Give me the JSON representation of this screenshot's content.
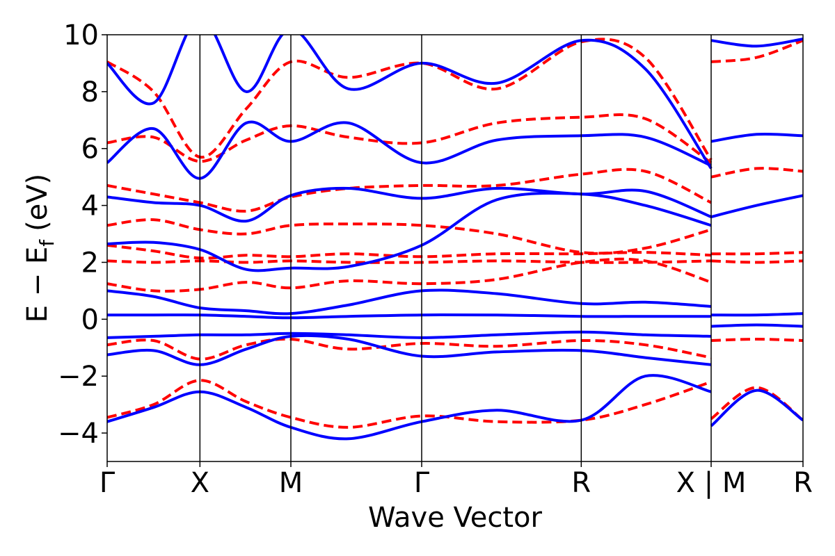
{
  "chart_data": {
    "type": "line",
    "xlabel": "Wave Vector",
    "ylabel": "E − E",
    "ylabel_subscript": "f",
    "ylabel_unit": "(eV)",
    "ylim": [
      -5,
      10
    ],
    "yticks": [
      {
        "value": -4,
        "label": "−4"
      },
      {
        "value": -2,
        "label": "−2"
      },
      {
        "value": 0,
        "label": "0"
      },
      {
        "value": 2,
        "label": "2"
      },
      {
        "value": 4,
        "label": "4"
      },
      {
        "value": 6,
        "label": "6"
      },
      {
        "value": 8,
        "label": "8"
      },
      {
        "value": 10,
        "label": "10"
      }
    ],
    "xlim": [
      0,
      7.5
    ],
    "kpoints": [
      {
        "x": 0,
        "label": "Γ"
      },
      {
        "x": 1,
        "label": "X"
      },
      {
        "x": 1.98,
        "label": "M"
      },
      {
        "x": 3.39,
        "label": "Γ"
      },
      {
        "x": 5.11,
        "label": "R"
      },
      {
        "x": 6.51,
        "label": "X | M"
      },
      {
        "x": 7.5,
        "label": "R"
      }
    ],
    "grid": false,
    "series": [
      {
        "style": "dashed",
        "color": "#ff0000",
        "bands": [
          [
            [
              0,
              -3.45
            ],
            [
              0.5,
              -3.0
            ],
            [
              1,
              -2.15
            ],
            [
              1.5,
              -2.9
            ],
            [
              1.98,
              -3.45
            ],
            [
              2.6,
              -3.8
            ],
            [
              3.39,
              -3.4
            ],
            [
              4.2,
              -3.6
            ],
            [
              5.11,
              -3.55
            ],
            [
              5.8,
              -3.0
            ],
            [
              6.51,
              -2.2
            ]
          ],
          [
            [
              0,
              -0.9
            ],
            [
              0.5,
              -0.75
            ],
            [
              1,
              -1.4
            ],
            [
              1.5,
              -0.9
            ],
            [
              1.98,
              -0.7
            ],
            [
              2.6,
              -1.05
            ],
            [
              3.39,
              -0.85
            ],
            [
              4.2,
              -0.95
            ],
            [
              5.11,
              -0.75
            ],
            [
              5.8,
              -0.9
            ],
            [
              6.51,
              -1.35
            ]
          ],
          [
            [
              0,
              1.25
            ],
            [
              0.5,
              1.0
            ],
            [
              1,
              1.05
            ],
            [
              1.5,
              1.3
            ],
            [
              1.98,
              1.1
            ],
            [
              2.6,
              1.35
            ],
            [
              3.39,
              1.25
            ],
            [
              4.2,
              1.4
            ],
            [
              5.11,
              2.0
            ],
            [
              5.8,
              2.05
            ],
            [
              6.51,
              1.3
            ]
          ],
          [
            [
              0,
              2.05
            ],
            [
              0.5,
              2.0
            ],
            [
              1,
              2.05
            ],
            [
              1.5,
              2.0
            ],
            [
              1.98,
              2.05
            ],
            [
              2.6,
              2.0
            ],
            [
              3.39,
              2.0
            ],
            [
              4.2,
              2.05
            ],
            [
              5.11,
              2.0
            ],
            [
              5.8,
              2.0
            ],
            [
              6.51,
              2.05
            ]
          ],
          [
            [
              0,
              2.6
            ],
            [
              0.5,
              2.4
            ],
            [
              1,
              2.15
            ],
            [
              1.5,
              2.25
            ],
            [
              1.98,
              2.2
            ],
            [
              2.6,
              2.3
            ],
            [
              3.39,
              2.2
            ],
            [
              4.2,
              2.3
            ],
            [
              5.11,
              2.3
            ],
            [
              5.8,
              2.35
            ],
            [
              6.51,
              2.25
            ]
          ],
          [
            [
              0,
              3.3
            ],
            [
              0.5,
              3.5
            ],
            [
              1,
              3.15
            ],
            [
              1.5,
              3.0
            ],
            [
              1.98,
              3.3
            ],
            [
              2.6,
              3.35
            ],
            [
              3.39,
              3.3
            ],
            [
              4.2,
              3.0
            ],
            [
              5.11,
              2.35
            ],
            [
              5.8,
              2.5
            ],
            [
              6.51,
              3.15
            ]
          ],
          [
            [
              0,
              4.7
            ],
            [
              0.5,
              4.4
            ],
            [
              1,
              4.1
            ],
            [
              1.5,
              3.8
            ],
            [
              1.98,
              4.3
            ],
            [
              2.6,
              4.6
            ],
            [
              3.39,
              4.7
            ],
            [
              4.2,
              4.7
            ],
            [
              5.11,
              5.1
            ],
            [
              5.8,
              5.2
            ],
            [
              6.51,
              4.1
            ]
          ],
          [
            [
              0,
              6.2
            ],
            [
              0.5,
              6.4
            ],
            [
              1,
              5.55
            ],
            [
              1.5,
              6.3
            ],
            [
              1.98,
              6.8
            ],
            [
              2.6,
              6.4
            ],
            [
              3.39,
              6.2
            ],
            [
              4.2,
              6.9
            ],
            [
              5.11,
              7.1
            ],
            [
              5.8,
              7.05
            ],
            [
              6.51,
              5.5
            ]
          ],
          [
            [
              0,
              9.05
            ],
            [
              0.5,
              8.0
            ],
            [
              1,
              5.7
            ],
            [
              1.5,
              7.4
            ],
            [
              1.98,
              9.05
            ],
            [
              2.6,
              8.5
            ],
            [
              3.39,
              9.0
            ],
            [
              4.2,
              8.1
            ],
            [
              5.11,
              9.75
            ],
            [
              5.8,
              9.2
            ],
            [
              6.51,
              5.6
            ]
          ],
          [
            [
              6.51,
              9.05
            ],
            [
              7.0,
              9.2
            ],
            [
              7.5,
              9.8
            ]
          ],
          [
            [
              6.51,
              5.0
            ],
            [
              7.0,
              5.3
            ],
            [
              7.5,
              5.2
            ]
          ],
          [
            [
              6.51,
              2.3
            ],
            [
              7.0,
              2.3
            ],
            [
              7.5,
              2.35
            ]
          ],
          [
            [
              6.51,
              2.05
            ],
            [
              7.0,
              2.0
            ],
            [
              7.5,
              2.05
            ]
          ],
          [
            [
              6.51,
              -0.75
            ],
            [
              7.0,
              -0.7
            ],
            [
              7.5,
              -0.75
            ]
          ],
          [
            [
              6.51,
              -3.5
            ],
            [
              7.0,
              -2.4
            ],
            [
              7.5,
              -3.55
            ]
          ]
        ]
      },
      {
        "style": "solid",
        "color": "#0000ff",
        "bands": [
          [
            [
              0,
              -3.6
            ],
            [
              0.5,
              -3.1
            ],
            [
              1,
              -2.55
            ],
            [
              1.5,
              -3.1
            ],
            [
              1.98,
              -3.8
            ],
            [
              2.6,
              -4.2
            ],
            [
              3.39,
              -3.6
            ],
            [
              4.2,
              -3.2
            ],
            [
              5.11,
              -3.55
            ],
            [
              5.8,
              -2.0
            ],
            [
              6.51,
              -2.55
            ]
          ],
          [
            [
              0,
              -1.25
            ],
            [
              0.5,
              -1.1
            ],
            [
              1,
              -1.6
            ],
            [
              1.5,
              -1.05
            ],
            [
              1.98,
              -0.6
            ],
            [
              2.6,
              -0.7
            ],
            [
              3.39,
              -1.3
            ],
            [
              4.2,
              -1.15
            ],
            [
              5.11,
              -1.1
            ],
            [
              5.8,
              -1.35
            ],
            [
              6.51,
              -1.6
            ]
          ],
          [
            [
              0,
              -0.65
            ],
            [
              0.5,
              -0.6
            ],
            [
              1,
              -0.55
            ],
            [
              1.5,
              -0.55
            ],
            [
              1.98,
              -0.5
            ],
            [
              2.6,
              -0.55
            ],
            [
              3.39,
              -0.65
            ],
            [
              4.2,
              -0.55
            ],
            [
              5.11,
              -0.45
            ],
            [
              5.8,
              -0.55
            ],
            [
              6.51,
              -0.6
            ]
          ],
          [
            [
              0,
              0.15
            ],
            [
              0.5,
              0.15
            ],
            [
              1,
              0.15
            ],
            [
              1.5,
              0.1
            ],
            [
              1.98,
              0.05
            ],
            [
              2.6,
              0.1
            ],
            [
              3.39,
              0.15
            ],
            [
              4.2,
              0.15
            ],
            [
              5.11,
              0.1
            ],
            [
              5.8,
              0.1
            ],
            [
              6.51,
              0.1
            ]
          ],
          [
            [
              0,
              1.0
            ],
            [
              0.5,
              0.8
            ],
            [
              1,
              0.4
            ],
            [
              1.5,
              0.3
            ],
            [
              1.98,
              0.2
            ],
            [
              2.6,
              0.5
            ],
            [
              3.39,
              1.0
            ],
            [
              4.2,
              0.9
            ],
            [
              5.11,
              0.55
            ],
            [
              5.8,
              0.6
            ],
            [
              6.51,
              0.45
            ]
          ],
          [
            [
              0,
              2.65
            ],
            [
              0.5,
              2.7
            ],
            [
              1,
              2.45
            ],
            [
              1.5,
              1.75
            ],
            [
              1.98,
              1.8
            ],
            [
              2.6,
              1.85
            ],
            [
              3.39,
              2.6
            ],
            [
              4.2,
              4.2
            ],
            [
              5.11,
              4.4
            ],
            [
              5.8,
              4.0
            ],
            [
              6.51,
              3.3
            ]
          ],
          [
            [
              0,
              4.3
            ],
            [
              0.5,
              4.1
            ],
            [
              1,
              4.0
            ],
            [
              1.5,
              3.45
            ],
            [
              1.98,
              4.35
            ],
            [
              2.6,
              4.6
            ],
            [
              3.39,
              4.25
            ],
            [
              4.2,
              4.6
            ],
            [
              5.11,
              4.4
            ],
            [
              5.8,
              4.5
            ],
            [
              6.51,
              3.6
            ]
          ],
          [
            [
              0,
              5.5
            ],
            [
              0.5,
              6.7
            ],
            [
              1,
              4.95
            ],
            [
              1.5,
              6.9
            ],
            [
              1.98,
              6.25
            ],
            [
              2.6,
              6.9
            ],
            [
              3.39,
              5.5
            ],
            [
              4.2,
              6.3
            ],
            [
              5.11,
              6.45
            ],
            [
              5.8,
              6.4
            ],
            [
              6.51,
              5.4
            ]
          ],
          [
            [
              0,
              9.0
            ],
            [
              0.5,
              7.6
            ],
            [
              1,
              10.6
            ],
            [
              1.5,
              8.0
            ],
            [
              1.98,
              10.2
            ],
            [
              2.6,
              8.1
            ],
            [
              3.39,
              9.0
            ],
            [
              4.2,
              8.3
            ],
            [
              5.11,
              9.8
            ],
            [
              5.8,
              8.8
            ],
            [
              6.51,
              5.3
            ]
          ],
          [
            [
              6.51,
              9.8
            ],
            [
              7.0,
              9.6
            ],
            [
              7.5,
              9.85
            ]
          ],
          [
            [
              6.51,
              6.25
            ],
            [
              7.0,
              6.5
            ],
            [
              7.5,
              6.45
            ]
          ],
          [
            [
              6.51,
              3.6
            ],
            [
              7.0,
              4.0
            ],
            [
              7.5,
              4.35
            ]
          ],
          [
            [
              6.51,
              0.15
            ],
            [
              7.0,
              0.15
            ],
            [
              7.5,
              0.2
            ]
          ],
          [
            [
              6.51,
              -0.25
            ],
            [
              7.0,
              -0.2
            ],
            [
              7.5,
              -0.25
            ]
          ],
          [
            [
              6.51,
              -3.75
            ],
            [
              7.0,
              -2.5
            ],
            [
              7.5,
              -3.55
            ]
          ]
        ]
      }
    ]
  }
}
